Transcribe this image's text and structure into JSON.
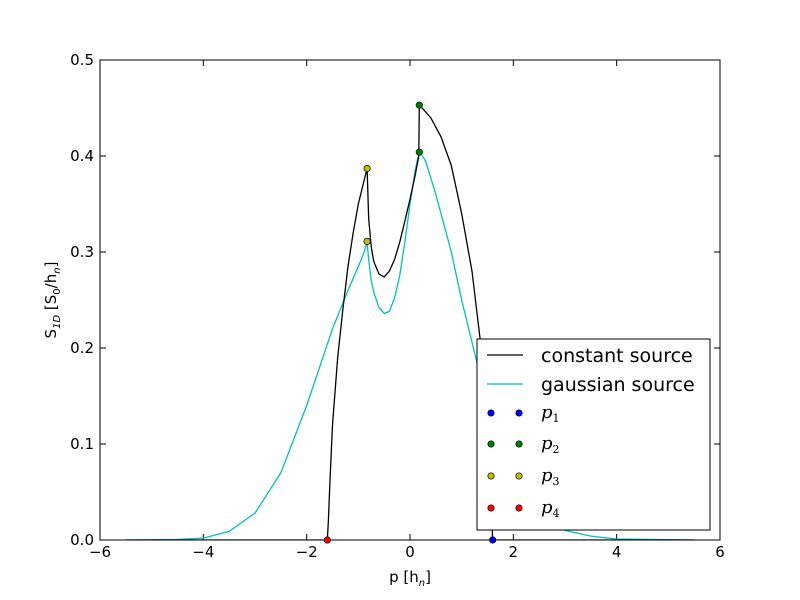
{
  "chart_data": {
    "type": "line",
    "xlabel": "p  [h",
    "xlabel_sub": "n",
    "xlabel_end": "]",
    "ylabel": "S",
    "ylabel_sub": "1D",
    "ylabel_mid": "  [S",
    "ylabel_sub2": "0",
    "ylabel_mid2": "/h",
    "ylabel_sub3": "n",
    "ylabel_end": "]",
    "xlim": [
      -6,
      6
    ],
    "ylim": [
      0,
      0.5
    ],
    "xticks": [
      -6,
      -4,
      -2,
      0,
      2,
      4,
      6
    ],
    "xtick_labels": [
      "−6",
      "−4",
      "−2",
      "0",
      "2",
      "4",
      "6"
    ],
    "yticks": [
      0.0,
      0.1,
      0.2,
      0.3,
      0.4,
      0.5
    ],
    "ytick_labels": [
      "0.0",
      "0.1",
      "0.2",
      "0.3",
      "0.4",
      "0.5"
    ],
    "grid": false,
    "legend_position": "lower right",
    "series": [
      {
        "name": "constant source",
        "color": "#000000",
        "x": [
          -5.5,
          -1.6,
          -1.58,
          -1.55,
          -1.5,
          -1.4,
          -1.3,
          -1.2,
          -1.1,
          -1.0,
          -0.9,
          -0.83,
          -0.82,
          -0.8,
          -0.75,
          -0.7,
          -0.6,
          -0.5,
          -0.4,
          -0.3,
          -0.2,
          -0.1,
          0.0,
          0.1,
          0.17,
          0.18,
          0.2,
          0.4,
          0.6,
          0.8,
          1.0,
          1.2,
          1.4,
          1.5,
          1.55,
          1.58,
          1.6,
          5.5
        ],
        "y": [
          0.0,
          0.0,
          0.02,
          0.06,
          0.12,
          0.19,
          0.24,
          0.285,
          0.32,
          0.35,
          0.372,
          0.387,
          0.37,
          0.335,
          0.305,
          0.29,
          0.277,
          0.274,
          0.28,
          0.292,
          0.31,
          0.332,
          0.355,
          0.38,
          0.4,
          0.453,
          0.452,
          0.44,
          0.42,
          0.39,
          0.34,
          0.28,
          0.19,
          0.12,
          0.07,
          0.03,
          0.0,
          0.0
        ]
      },
      {
        "name": "gaussian source",
        "color": "#00bfbf",
        "x": [
          -5.5,
          -4.5,
          -4.0,
          -3.5,
          -3.0,
          -2.5,
          -2.0,
          -1.5,
          -1.2,
          -1.0,
          -0.9,
          -0.83,
          -0.8,
          -0.75,
          -0.7,
          -0.6,
          -0.5,
          -0.4,
          -0.3,
          -0.2,
          -0.1,
          0.0,
          0.1,
          0.18,
          0.3,
          0.5,
          0.8,
          1.0,
          1.5,
          2.0,
          2.5,
          3.0,
          3.5,
          4.0,
          5.5
        ],
        "y": [
          0.0,
          0.0005,
          0.002,
          0.009,
          0.028,
          0.07,
          0.14,
          0.22,
          0.26,
          0.285,
          0.298,
          0.31,
          0.292,
          0.27,
          0.258,
          0.242,
          0.236,
          0.238,
          0.252,
          0.275,
          0.31,
          0.35,
          0.385,
          0.405,
          0.395,
          0.36,
          0.3,
          0.25,
          0.14,
          0.07,
          0.03,
          0.01,
          0.004,
          0.001,
          0.0
        ]
      }
    ],
    "points": [
      {
        "name": "p",
        "sub": "1",
        "color": "#0000ff",
        "coords": [
          [
            1.6,
            0.0
          ]
        ]
      },
      {
        "name": "p",
        "sub": "2",
        "color": "#008000",
        "coords": [
          [
            0.18,
            0.453
          ],
          [
            0.18,
            0.404
          ]
        ]
      },
      {
        "name": "p",
        "sub": "3",
        "color": "#bfbf00",
        "coords": [
          [
            -0.83,
            0.387
          ],
          [
            -0.83,
            0.311
          ]
        ]
      },
      {
        "name": "p",
        "sub": "4",
        "color": "#ff0000",
        "coords": [
          [
            -1.6,
            0.0
          ]
        ]
      }
    ]
  }
}
